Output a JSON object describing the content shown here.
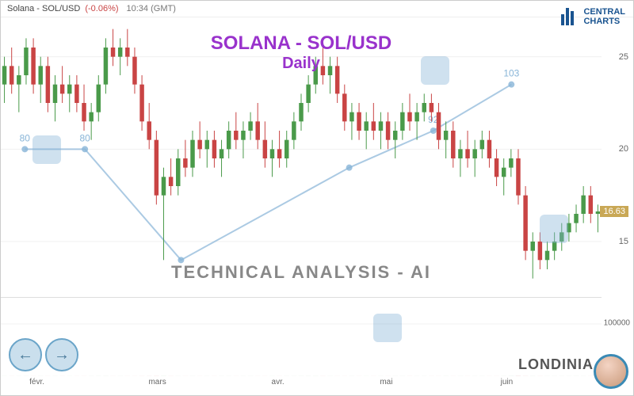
{
  "header": {
    "ticker": "Solana - SOL/USD",
    "change": "(-0.06%)",
    "time": "10:34 (GMT)"
  },
  "logo": {
    "line1": "CENTRAL",
    "line2": "CHARTS"
  },
  "title": {
    "main": "SOLANA - SOL/USD",
    "sub": "Daily"
  },
  "subtitle": "TECHNICAL  ANALYSIS - AI",
  "londinia": "LONDINIA",
  "price_chart": {
    "type": "candlestick",
    "ylim": [
      12,
      27
    ],
    "yticks": [
      15,
      20,
      25
    ],
    "current_price": "16.63",
    "current_price_y": 16.63,
    "grid_color": "#f0f0f0",
    "up_color": "#4a9a4a",
    "down_color": "#c94444",
    "overlay_line_color": "#87b4d7",
    "overlay_points": [
      {
        "x": 0.04,
        "y": 20,
        "label": "80"
      },
      {
        "x": 0.14,
        "y": 20,
        "label": "80"
      },
      {
        "x": 0.3,
        "y": 14
      },
      {
        "x": 0.58,
        "y": 19
      },
      {
        "x": 0.72,
        "y": 21,
        "label": "92"
      },
      {
        "x": 0.85,
        "y": 23.5,
        "label": "103"
      }
    ],
    "candles": [
      {
        "o": 23.5,
        "h": 25,
        "l": 22.5,
        "c": 24.5
      },
      {
        "o": 24.5,
        "h": 25.5,
        "l": 23,
        "c": 23.5
      },
      {
        "o": 23.5,
        "h": 24.5,
        "l": 22,
        "c": 24
      },
      {
        "o": 24,
        "h": 26,
        "l": 23.5,
        "c": 25.5
      },
      {
        "o": 25.5,
        "h": 26,
        "l": 23,
        "c": 23.5
      },
      {
        "o": 23.5,
        "h": 25,
        "l": 22.5,
        "c": 24.5
      },
      {
        "o": 24.5,
        "h": 25,
        "l": 22,
        "c": 22.5
      },
      {
        "o": 22.5,
        "h": 24,
        "l": 21.5,
        "c": 23.5
      },
      {
        "o": 23.5,
        "h": 24.5,
        "l": 22.5,
        "c": 23
      },
      {
        "o": 23,
        "h": 24,
        "l": 22,
        "c": 23.5
      },
      {
        "o": 23.5,
        "h": 24,
        "l": 22,
        "c": 22.5
      },
      {
        "o": 22.5,
        "h": 23.5,
        "l": 21,
        "c": 21.5
      },
      {
        "o": 21.5,
        "h": 22.5,
        "l": 20.5,
        "c": 22
      },
      {
        "o": 22,
        "h": 24,
        "l": 21.5,
        "c": 23.5
      },
      {
        "o": 23.5,
        "h": 26,
        "l": 23,
        "c": 25.5
      },
      {
        "o": 25.5,
        "h": 26.5,
        "l": 24.5,
        "c": 25
      },
      {
        "o": 25,
        "h": 26,
        "l": 24,
        "c": 25.5
      },
      {
        "o": 25.5,
        "h": 26.5,
        "l": 24.5,
        "c": 25
      },
      {
        "o": 25,
        "h": 25.5,
        "l": 23,
        "c": 23.5
      },
      {
        "o": 23.5,
        "h": 24,
        "l": 21,
        "c": 21.5
      },
      {
        "o": 21.5,
        "h": 22.5,
        "l": 20,
        "c": 20.5
      },
      {
        "o": 20.5,
        "h": 21,
        "l": 17,
        "c": 17.5
      },
      {
        "o": 17.5,
        "h": 19,
        "l": 14,
        "c": 18.5
      },
      {
        "o": 18.5,
        "h": 19.5,
        "l": 17.5,
        "c": 18
      },
      {
        "o": 18,
        "h": 20,
        "l": 17.5,
        "c": 19.5
      },
      {
        "o": 19.5,
        "h": 20.5,
        "l": 18.5,
        "c": 19
      },
      {
        "o": 19,
        "h": 21,
        "l": 18.5,
        "c": 20.5
      },
      {
        "o": 20.5,
        "h": 21.5,
        "l": 19.5,
        "c": 20
      },
      {
        "o": 20,
        "h": 21,
        "l": 19,
        "c": 20.5
      },
      {
        "o": 20.5,
        "h": 21,
        "l": 19,
        "c": 19.5
      },
      {
        "o": 19.5,
        "h": 20.5,
        "l": 18.5,
        "c": 20
      },
      {
        "o": 20,
        "h": 21.5,
        "l": 19.5,
        "c": 21
      },
      {
        "o": 21,
        "h": 22,
        "l": 20,
        "c": 20.5
      },
      {
        "o": 20.5,
        "h": 21.5,
        "l": 19.5,
        "c": 21
      },
      {
        "o": 21,
        "h": 22,
        "l": 20.5,
        "c": 21.5
      },
      {
        "o": 21.5,
        "h": 22.5,
        "l": 20,
        "c": 20.5
      },
      {
        "o": 20.5,
        "h": 21.5,
        "l": 19,
        "c": 19.5
      },
      {
        "o": 19.5,
        "h": 20.5,
        "l": 18.5,
        "c": 20
      },
      {
        "o": 20,
        "h": 21,
        "l": 19,
        "c": 19.5
      },
      {
        "o": 19.5,
        "h": 21,
        "l": 19,
        "c": 20.5
      },
      {
        "o": 20.5,
        "h": 22,
        "l": 20,
        "c": 21.5
      },
      {
        "o": 21.5,
        "h": 23,
        "l": 21,
        "c": 22.5
      },
      {
        "o": 22.5,
        "h": 24,
        "l": 22,
        "c": 23.5
      },
      {
        "o": 23.5,
        "h": 25,
        "l": 23,
        "c": 24.5
      },
      {
        "o": 24.5,
        "h": 25.5,
        "l": 23.5,
        "c": 24
      },
      {
        "o": 24,
        "h": 25,
        "l": 23,
        "c": 24.5
      },
      {
        "o": 24.5,
        "h": 25,
        "l": 22.5,
        "c": 23
      },
      {
        "o": 23,
        "h": 23.5,
        "l": 21,
        "c": 21.5
      },
      {
        "o": 21.5,
        "h": 22.5,
        "l": 20.5,
        "c": 22
      },
      {
        "o": 22,
        "h": 22.5,
        "l": 20.5,
        "c": 21
      },
      {
        "o": 21,
        "h": 22,
        "l": 20,
        "c": 21.5
      },
      {
        "o": 21.5,
        "h": 22.5,
        "l": 20.5,
        "c": 21
      },
      {
        "o": 21,
        "h": 22,
        "l": 20,
        "c": 21.5
      },
      {
        "o": 21.5,
        "h": 22,
        "l": 20,
        "c": 20.5
      },
      {
        "o": 20.5,
        "h": 21.5,
        "l": 19.5,
        "c": 21
      },
      {
        "o": 21,
        "h": 22.5,
        "l": 20.5,
        "c": 22
      },
      {
        "o": 22,
        "h": 23,
        "l": 21,
        "c": 21.5
      },
      {
        "o": 21.5,
        "h": 22.5,
        "l": 20.5,
        "c": 22
      },
      {
        "o": 22,
        "h": 23,
        "l": 21.5,
        "c": 22.5
      },
      {
        "o": 22.5,
        "h": 23,
        "l": 21.5,
        "c": 22
      },
      {
        "o": 22,
        "h": 22.5,
        "l": 20,
        "c": 20.5
      },
      {
        "o": 20.5,
        "h": 21.5,
        "l": 19.5,
        "c": 21
      },
      {
        "o": 21,
        "h": 21.5,
        "l": 19,
        "c": 19.5
      },
      {
        "o": 19.5,
        "h": 20.5,
        "l": 18.5,
        "c": 20
      },
      {
        "o": 20,
        "h": 21,
        "l": 19,
        "c": 19.5
      },
      {
        "o": 19.5,
        "h": 20.5,
        "l": 18.5,
        "c": 20
      },
      {
        "o": 20,
        "h": 21,
        "l": 19.5,
        "c": 20.5
      },
      {
        "o": 20.5,
        "h": 21,
        "l": 19,
        "c": 19.5
      },
      {
        "o": 19.5,
        "h": 20,
        "l": 18,
        "c": 18.5
      },
      {
        "o": 18.5,
        "h": 19.5,
        "l": 17.5,
        "c": 19
      },
      {
        "o": 19,
        "h": 20,
        "l": 18.5,
        "c": 19.5
      },
      {
        "o": 19.5,
        "h": 20,
        "l": 17,
        "c": 17.5
      },
      {
        "o": 17.5,
        "h": 18,
        "l": 14,
        "c": 14.5
      },
      {
        "o": 14.5,
        "h": 15.5,
        "l": 13,
        "c": 15
      },
      {
        "o": 15,
        "h": 15.5,
        "l": 13.5,
        "c": 14
      },
      {
        "o": 14,
        "h": 15,
        "l": 13.5,
        "c": 14.5
      },
      {
        "o": 14.5,
        "h": 15.5,
        "l": 14,
        "c": 15
      },
      {
        "o": 15,
        "h": 16,
        "l": 14.5,
        "c": 15.5
      },
      {
        "o": 15.5,
        "h": 16.5,
        "l": 15,
        "c": 16
      },
      {
        "o": 16,
        "h": 17,
        "l": 15.5,
        "c": 16.5
      },
      {
        "o": 16.5,
        "h": 18,
        "l": 16,
        "c": 17.5
      },
      {
        "o": 17.5,
        "h": 18,
        "l": 16,
        "c": 16.5
      },
      {
        "o": 16.5,
        "h": 17,
        "l": 15.5,
        "c": 16.63
      }
    ]
  },
  "volume_chart": {
    "type": "bar",
    "ylim": [
      0,
      150000
    ],
    "yticks": [
      100000
    ],
    "overlay_area_color": "rgba(135,180,215,0.35)",
    "up_color": "#4a9a4a",
    "down_color": "#c94444",
    "bars": [
      45,
      50,
      40,
      55,
      48,
      52,
      60,
      42,
      38,
      45,
      50,
      48,
      55,
      62,
      70,
      58,
      52,
      48,
      60,
      75,
      80,
      110,
      95,
      65,
      58,
      52,
      48,
      45,
      50,
      55,
      48,
      52,
      45,
      50,
      55,
      60,
      48,
      45,
      50,
      55,
      58,
      62,
      70,
      75,
      68,
      58,
      52,
      60,
      48,
      52,
      45,
      50,
      55,
      48,
      52,
      58,
      62,
      55,
      50,
      48,
      60,
      65,
      58,
      52,
      48,
      55,
      50,
      48,
      58,
      62,
      70,
      140,
      95,
      78,
      65,
      58,
      52,
      55,
      60,
      65,
      58,
      50,
      45
    ],
    "overlay": [
      35,
      40,
      38,
      45,
      42,
      48,
      50,
      40,
      35,
      38,
      42,
      40,
      48,
      55,
      60,
      50,
      45,
      42,
      50,
      62,
      68,
      90,
      80,
      55,
      50,
      45,
      42,
      40,
      45,
      48,
      42,
      45,
      40,
      45,
      48,
      52,
      42,
      40,
      45,
      48,
      50,
      55,
      60,
      65,
      58,
      50,
      45,
      52,
      42,
      45,
      40,
      45,
      48,
      42,
      45,
      50,
      55,
      48,
      45,
      42,
      52,
      55,
      50,
      45,
      42,
      48,
      45,
      42,
      50,
      55,
      60,
      100,
      80,
      65,
      55,
      50,
      45,
      48,
      52,
      55,
      50,
      45,
      40
    ]
  },
  "x_axis": {
    "labels": [
      {
        "pos": 0.06,
        "text": "févr."
      },
      {
        "pos": 0.26,
        "text": "mars"
      },
      {
        "pos": 0.46,
        "text": "avr."
      },
      {
        "pos": 0.64,
        "text": "mai"
      },
      {
        "pos": 0.84,
        "text": "juin"
      }
    ]
  }
}
